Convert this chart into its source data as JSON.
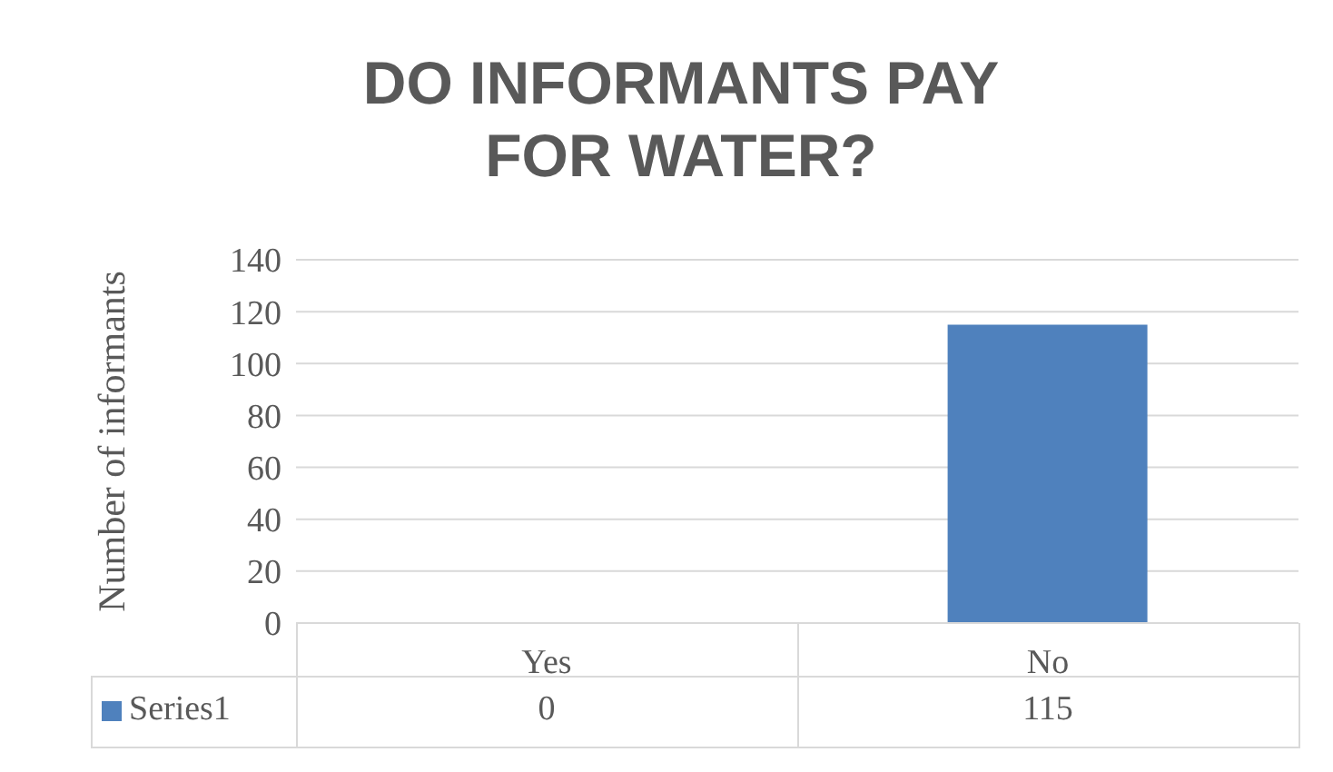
{
  "chart_data": {
    "type": "bar",
    "title": "DO INFORMANTS PAY FOR WATER?",
    "ylabel": "Number of informants",
    "categories": [
      "Yes",
      "No"
    ],
    "series": [
      {
        "name": "Series1",
        "color": "#4f81bd",
        "values": [
          0,
          115
        ]
      }
    ],
    "ylim": [
      0,
      140
    ],
    "yticks": [
      0,
      20,
      40,
      60,
      80,
      100,
      120,
      140
    ],
    "grid": "y",
    "legend": "bottom",
    "data_labels": true
  }
}
